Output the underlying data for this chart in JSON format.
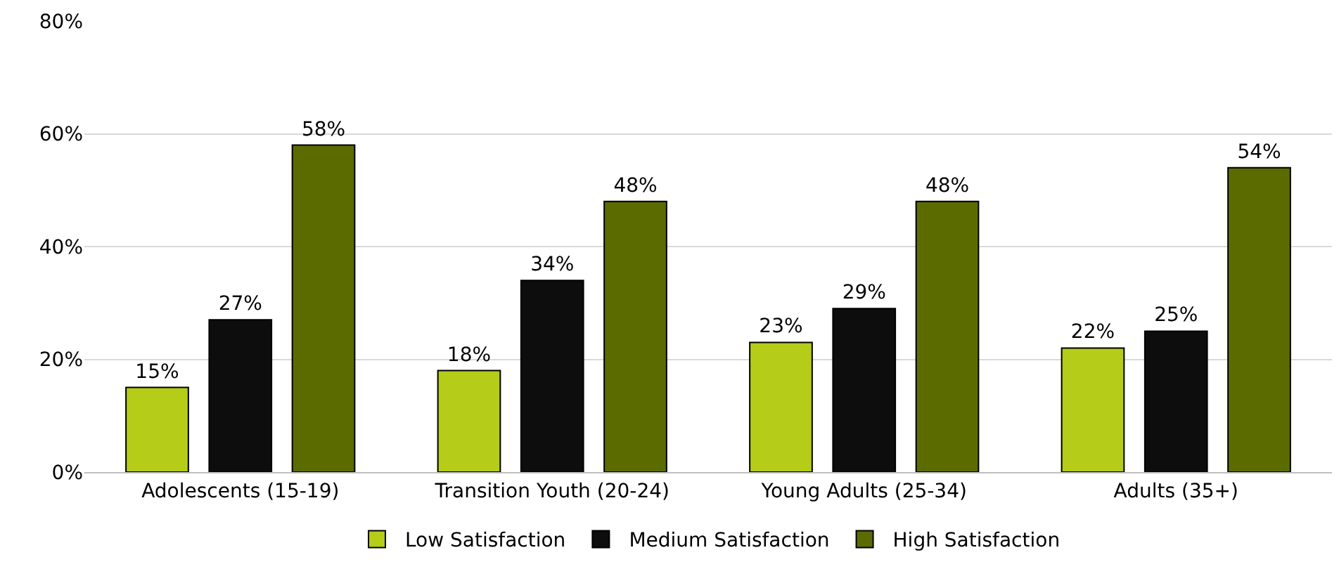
{
  "chart_data": {
    "type": "bar",
    "categories": [
      "Adolescents (15-19)",
      "Transition Youth (20-24)",
      "Young Adults (25-34)",
      "Adults (35+)"
    ],
    "series": [
      {
        "name": "Low Satisfaction",
        "color": "#b5cc18",
        "values": [
          15,
          18,
          23,
          22
        ],
        "value_labels": [
          "15%",
          "18%",
          "23%",
          "22%"
        ]
      },
      {
        "name": "Medium Satisfaction",
        "color": "#0d0d0d",
        "values": [
          27,
          34,
          29,
          25
        ],
        "value_labels": [
          "27%",
          "34%",
          "29%",
          "25%"
        ]
      },
      {
        "name": "High Satisfaction",
        "color": "#5c6b00",
        "values": [
          58,
          48,
          48,
          54
        ],
        "value_labels": [
          "58%",
          "48%",
          "48%",
          "54%"
        ]
      }
    ],
    "ylim": [
      0,
      80
    ],
    "yticks": [
      {
        "value": 0,
        "label": "0%"
      },
      {
        "value": 20,
        "label": "20%"
      },
      {
        "value": 40,
        "label": "40%"
      },
      {
        "value": 60,
        "label": "60%"
      },
      {
        "value": 80,
        "label": "80%"
      }
    ],
    "grid": "y",
    "legend": "bottom"
  }
}
